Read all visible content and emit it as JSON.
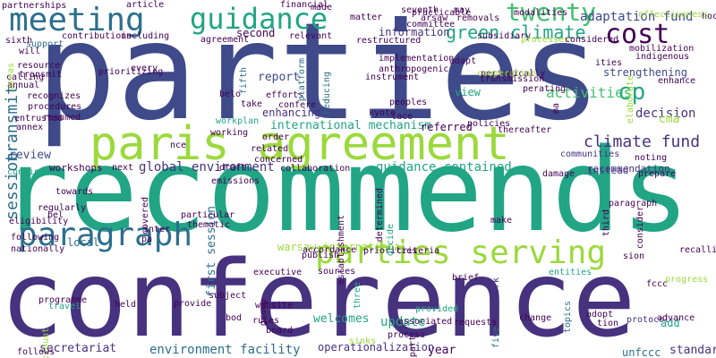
{
  "palette": {
    "green": "#9bd93c",
    "teal": "#21a585",
    "blue": "#2d6f8e",
    "purple": "#46327e",
    "indigo": "#3e4a89",
    "violet": "#440154"
  },
  "words": [
    {
      "text": "parties",
      "color": "#3e4a89"
    },
    {
      "text": "recommends",
      "color": "#21a585"
    },
    {
      "text": "conference",
      "color": "#46327e"
    },
    {
      "text": "paris agreement",
      "color": "#9bd93c"
    },
    {
      "text": "meeting",
      "color": "#2d6f8e"
    },
    {
      "text": "guidance",
      "color": "#21a585"
    },
    {
      "text": "twenty",
      "color": "#44bf70"
    },
    {
      "text": "cost",
      "color": "#440154"
    },
    {
      "text": "green climate",
      "color": "#21a585"
    },
    {
      "text": "adaptation fund",
      "color": "#3e4a89"
    },
    {
      "text": "cp",
      "color": "#21a585"
    },
    {
      "text": "parties serving",
      "color": "#9bd93c"
    },
    {
      "text": "paragraph",
      "color": "#2d6f8e"
    },
    {
      "text": "climate fund",
      "color": "#46327e"
    },
    {
      "text": "transmit",
      "color": "#2d6f8e"
    },
    {
      "text": "session",
      "color": "#2d6f8e"
    },
    {
      "text": "review",
      "color": "#3e4a89"
    },
    {
      "text": "global environment",
      "color": "#46327e"
    },
    {
      "text": "guidance contained",
      "color": "#21a585"
    },
    {
      "text": "activities",
      "color": "#44bf70"
    },
    {
      "text": "decision",
      "color": "#46327e"
    },
    {
      "text": "cma",
      "color": "#9bd93c"
    },
    {
      "text": "report",
      "color": "#3e4a89"
    },
    {
      "text": "information",
      "color": "#46327e"
    },
    {
      "text": "second",
      "color": "#440154"
    },
    {
      "text": "international mechanism",
      "color": "#21a585"
    },
    {
      "text": "environment facility",
      "color": "#2d6f8e"
    },
    {
      "text": "secretariat",
      "color": "#46327e"
    },
    {
      "text": "update",
      "color": "#21a585"
    },
    {
      "text": "year",
      "color": "#440154"
    },
    {
      "text": "standard",
      "color": "#46327e"
    },
    {
      "text": "strengthening",
      "color": "#3e4a89"
    },
    {
      "text": "efforts",
      "color": "#440154"
    },
    {
      "text": "enhancing",
      "color": "#46327e"
    },
    {
      "text": "referred",
      "color": "#440154"
    },
    {
      "text": "local",
      "color": "#2d6f8e"
    },
    {
      "text": "first session",
      "color": "#2d6f8e"
    },
    {
      "text": "welcomes",
      "color": "#21a585"
    },
    {
      "text": "website",
      "color": "#440154"
    },
    {
      "text": "board",
      "color": "#440154"
    },
    {
      "text": "executive",
      "color": "#440154"
    },
    {
      "text": "publish",
      "color": "#440154"
    },
    {
      "text": "warsaw international",
      "color": "#9bd93c"
    },
    {
      "text": "recommendation",
      "color": "#46327e"
    },
    {
      "text": "instead",
      "color": "#46327e"
    },
    {
      "text": "communities",
      "color": "#46327e"
    },
    {
      "text": "entities",
      "color": "#21a585"
    },
    {
      "text": "protocol",
      "color": "#46327e"
    },
    {
      "text": "add",
      "color": "#21a585"
    },
    {
      "text": "adopt",
      "color": "#440154"
    },
    {
      "text": "unfccc",
      "color": "#2d6f8e"
    },
    {
      "text": "provided",
      "color": "#21a585"
    },
    {
      "text": "peoples",
      "color": "#440154"
    },
    {
      "text": "kyoto",
      "color": "#440154"
    },
    {
      "text": "view",
      "color": "#21a585"
    },
    {
      "text": "adapt",
      "color": "#440154"
    },
    {
      "text": "indigenous",
      "color": "#440154"
    },
    {
      "text": "mobilization",
      "color": "#440154"
    },
    {
      "text": "workshops",
      "color": "#440154"
    },
    {
      "text": "regularly",
      "color": "#440154"
    },
    {
      "text": "support",
      "color": "#2d6f8e"
    },
    {
      "text": "sixth",
      "color": "#440154"
    },
    {
      "text": "resource",
      "color": "#440154"
    },
    {
      "text": "platform",
      "color": "#2d6f8e"
    },
    {
      "text": "relevant",
      "color": "#440154"
    },
    {
      "text": "fifth",
      "color": "#2d6f8e"
    },
    {
      "text": "take",
      "color": "#440154"
    },
    {
      "text": "workplan",
      "color": "#21a585"
    },
    {
      "text": "order",
      "color": "#440154"
    },
    {
      "text": "travel",
      "color": "#21a585"
    },
    {
      "text": "operationalization",
      "color": "#46327e"
    },
    {
      "text": "work",
      "color": "#46327e"
    },
    {
      "text": "five",
      "color": "#2d6f8e"
    },
    {
      "text": "three",
      "color": "#21a585"
    },
    {
      "text": "brief",
      "color": "#440154"
    },
    {
      "text": "may",
      "color": "#440154"
    },
    {
      "text": "seventh",
      "color": "#440154"
    },
    {
      "text": "committee",
      "color": "#440154"
    },
    {
      "text": "practicable",
      "color": "#440154"
    },
    {
      "text": "fccc",
      "color": "#440154"
    },
    {
      "text": "sion",
      "color": "#440154"
    },
    {
      "text": "recalling",
      "color": "#440154"
    },
    {
      "text": "topics",
      "color": "#2d6f8e"
    },
    {
      "text": "ities",
      "color": "#440154"
    },
    {
      "text": "reducing",
      "color": "#2d6f8e"
    },
    {
      "text": "instrument",
      "color": "#440154"
    },
    {
      "text": "policies",
      "color": "#440154"
    },
    {
      "text": "elaborate",
      "color": "#9bd93c"
    },
    {
      "text": "implementation",
      "color": "#440154"
    },
    {
      "text": "anthropogenic",
      "color": "#440154"
    },
    {
      "text": "restructured",
      "color": "#440154"
    },
    {
      "text": "contributions",
      "color": "#440154"
    },
    {
      "text": "including",
      "color": "#440154"
    },
    {
      "text": "partnerships",
      "color": "#440154"
    },
    {
      "text": "article",
      "color": "#440154"
    },
    {
      "text": "financial",
      "color": "#440154"
    },
    {
      "text": "made",
      "color": "#440154"
    },
    {
      "text": "modalities",
      "color": "#440154"
    },
    {
      "text": "hoc",
      "color": "#440154"
    },
    {
      "text": "removals",
      "color": "#440154"
    },
    {
      "text": "arsaw",
      "color": "#440154"
    },
    {
      "text": "matter",
      "color": "#440154"
    },
    {
      "text": "subsidiary",
      "color": "#440154"
    },
    {
      "text": "processes",
      "color": "#9bd93c"
    },
    {
      "text": "considered",
      "color": "#440154"
    },
    {
      "text": "agreement",
      "color": "#440154"
    },
    {
      "text": "will",
      "color": "#440154"
    },
    {
      "text": "transmit",
      "color": "#440154"
    },
    {
      "text": "calling",
      "color": "#440154"
    },
    {
      "text": "annual",
      "color": "#440154"
    },
    {
      "text": "prioritizing",
      "color": "#440154"
    },
    {
      "text": "every",
      "color": "#440154"
    },
    {
      "text": "recognizes",
      "color": "#440154"
    },
    {
      "text": "procedures",
      "color": "#440154"
    },
    {
      "text": "entrusted",
      "color": "#440154"
    },
    {
      "text": "resumed",
      "color": "#440154"
    },
    {
      "text": "annex",
      "color": "#440154"
    },
    {
      "text": "continue",
      "color": "#21a585"
    },
    {
      "text": "eligibility",
      "color": "#440154"
    },
    {
      "text": "following",
      "color": "#440154"
    },
    {
      "text": "nationally",
      "color": "#440154"
    },
    {
      "text": "towards",
      "color": "#440154"
    },
    {
      "text": "programme",
      "color": "#440154"
    },
    {
      "text": "account",
      "color": "#9bd93c"
    },
    {
      "text": "held",
      "color": "#440154"
    },
    {
      "text": "follows",
      "color": "#440154"
    },
    {
      "text": "next",
      "color": "#440154"
    },
    {
      "text": "draft",
      "color": "#440154"
    },
    {
      "text": "collaboration",
      "color": "#440154"
    },
    {
      "text": "related",
      "color": "#440154"
    },
    {
      "text": "concerned",
      "color": "#440154"
    },
    {
      "text": "confere",
      "color": "#440154"
    },
    {
      "text": "sources",
      "color": "#440154"
    },
    {
      "text": "accordance",
      "color": "#440154"
    },
    {
      "text": "rules",
      "color": "#440154"
    },
    {
      "text": "priorities",
      "color": "#440154"
    },
    {
      "text": "criteria",
      "color": "#440154"
    },
    {
      "text": "associated",
      "color": "#440154"
    },
    {
      "text": "process",
      "color": "#440154"
    },
    {
      "text": "requests",
      "color": "#440154"
    },
    {
      "text": "change",
      "color": "#440154"
    },
    {
      "text": "advance",
      "color": "#440154"
    },
    {
      "text": "progress",
      "color": "#9bd93c"
    },
    {
      "text": "make",
      "color": "#440154"
    },
    {
      "text": "damage",
      "color": "#440154"
    },
    {
      "text": "noting",
      "color": "#440154"
    },
    {
      "text": "prepare",
      "color": "#440154"
    },
    {
      "text": "thereafter",
      "color": "#440154"
    },
    {
      "text": "enhance",
      "color": "#440154"
    },
    {
      "text": "effectiveness",
      "color": "#9bd93c"
    },
    {
      "text": "periodically",
      "color": "#440154"
    },
    {
      "text": "transmission",
      "color": "#440154"
    },
    {
      "text": "perating",
      "color": "#440154"
    },
    {
      "text": "determined",
      "color": "#440154"
    },
    {
      "text": "establishment",
      "color": "#440154"
    },
    {
      "text": "consider",
      "color": "#440154"
    },
    {
      "text": "paragraph",
      "color": "#440154"
    },
    {
      "text": "third",
      "color": "#440154"
    },
    {
      "text": "covered",
      "color": "#440154"
    },
    {
      "text": "particular",
      "color": "#440154"
    },
    {
      "text": "thematic",
      "color": "#440154"
    },
    {
      "text": "working",
      "color": "#440154"
    },
    {
      "text": "group",
      "color": "#440154"
    },
    {
      "text": "provide",
      "color": "#440154"
    },
    {
      "text": "sinks",
      "color": "#9bd93c"
    },
    {
      "text": "part",
      "color": "#440154"
    },
    {
      "text": "subject",
      "color": "#440154"
    },
    {
      "text": "bod",
      "color": "#440154"
    },
    {
      "text": "pa",
      "color": "#440154"
    },
    {
      "text": "inter",
      "color": "#440154"
    },
    {
      "text": "nce",
      "color": "#440154"
    },
    {
      "text": "belo",
      "color": "#440154"
    },
    {
      "text": "tion",
      "color": "#440154"
    },
    {
      "text": "ma",
      "color": "#440154"
    },
    {
      "text": "cooperation",
      "color": "#9bd93c"
    },
    {
      "text": "decide",
      "color": "#21a585"
    },
    {
      "text": "areas",
      "color": "#9bd93c"
    },
    {
      "text": "emissions",
      "color": "#440154"
    },
    {
      "text": "lace",
      "color": "#440154"
    },
    {
      "text": "bel",
      "color": "#440154"
    },
    {
      "text": "erained",
      "color": "#440154"
    }
  ]
}
